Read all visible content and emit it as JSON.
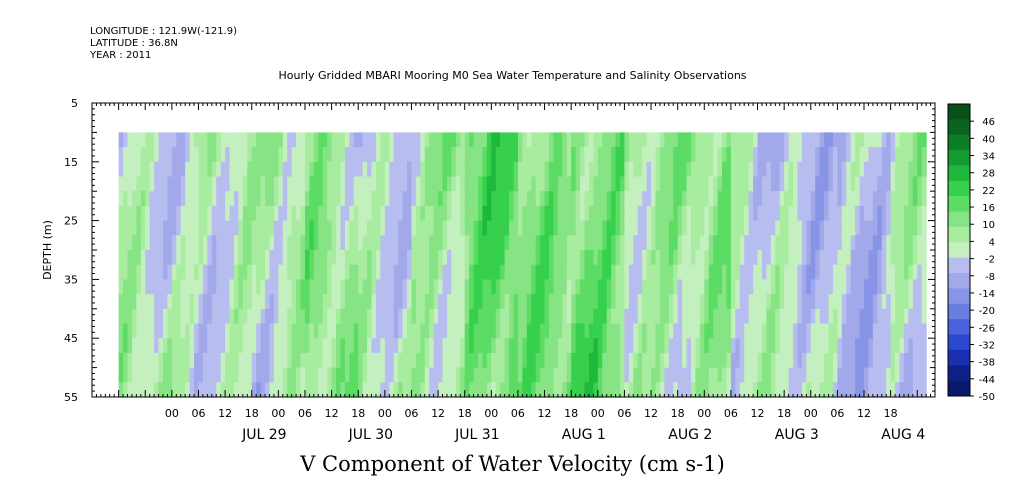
{
  "header": {
    "longitude": "LONGITUDE : 121.9W(-121.9)",
    "latitude": "LATITUDE : 36.8N",
    "year": "YEAR : 2011",
    "title": "Hourly Gridded MBARI Mooring M0 Sea Water Temperature and Salinity Observations"
  },
  "chart_data": {
    "type": "heatmap",
    "title": "V Component of Water Velocity (cm s-1)",
    "ylabel": "DEPTH (m)",
    "xlabel": "",
    "ylim": [
      55,
      5
    ],
    "y_ticks": [
      5,
      15,
      25,
      35,
      45,
      55
    ],
    "x_hour_labels": [
      "00",
      "06",
      "12",
      "18",
      "00",
      "06",
      "12",
      "18",
      "00",
      "06",
      "12",
      "18",
      "00",
      "06",
      "12",
      "18",
      "00",
      "06",
      "12",
      "18",
      "00",
      "06",
      "12",
      "18",
      "00",
      "06",
      "12",
      "18"
    ],
    "x_day_labels": [
      "JUL 29",
      "JUL 30",
      "JUL 31",
      "AUG  1",
      "AUG  2",
      "AUG  3",
      "AUG  4"
    ],
    "data_depth_range": [
      10,
      55
    ],
    "x_range_hours": [
      -24,
      166
    ],
    "data_x_range_hours": [
      -18,
      164
    ],
    "colorbar_levels": [
      46,
      40,
      34,
      28,
      22,
      16,
      10,
      4,
      -2,
      -8,
      -14,
      -20,
      -26,
      -32,
      -38,
      -44,
      -50
    ],
    "colorbar_range": [
      -50,
      52
    ],
    "colorbar_colors": [
      "#0a1a6a",
      "#10208a",
      "#1a30b0",
      "#2a48d0",
      "#4a62dc",
      "#6a7ee2",
      "#8894e6",
      "#a2a9ea",
      "#b8bdf0",
      "#c4f0c0",
      "#a8eca0",
      "#86e484",
      "#5cdc64",
      "#36d04c",
      "#1eb83c",
      "#149a30",
      "#0e7e26",
      "#0a6420",
      "#0a501a"
    ],
    "description_bands": [
      {
        "hour_start": -18,
        "hour_end": 0,
        "mean_v": 2
      },
      {
        "hour_start": 0,
        "hour_end": 12,
        "mean_v": 4
      },
      {
        "hour_start": 12,
        "hour_end": 24,
        "mean_v": 1
      },
      {
        "hour_start": 24,
        "hour_end": 36,
        "mean_v": 6
      },
      {
        "hour_start": 36,
        "hour_end": 48,
        "mean_v": 2
      },
      {
        "hour_start": 48,
        "hour_end": 60,
        "mean_v": 8
      },
      {
        "hour_start": 60,
        "hour_end": 72,
        "mean_v": 14
      },
      {
        "hour_start": 72,
        "hour_end": 84,
        "mean_v": 10
      },
      {
        "hour_start": 84,
        "hour_end": 96,
        "mean_v": 16
      },
      {
        "hour_start": 96,
        "hour_end": 108,
        "mean_v": 8
      },
      {
        "hour_start": 108,
        "hour_end": 120,
        "mean_v": 6
      },
      {
        "hour_start": 120,
        "hour_end": 132,
        "mean_v": -2
      },
      {
        "hour_start": 132,
        "hour_end": 144,
        "mean_v": -1
      },
      {
        "hour_start": 144,
        "hour_end": 156,
        "mean_v": -3
      },
      {
        "hour_start": 156,
        "hour_end": 164,
        "mean_v": 1
      }
    ]
  }
}
